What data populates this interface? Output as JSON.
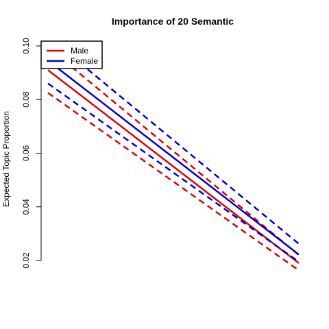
{
  "chart_data": {
    "type": "line",
    "title": "Importance of 20 Semantic",
    "xlabel": "",
    "ylabel": "Expected Topic Proportion",
    "x": [
      0,
      1
    ],
    "xlim": [
      0,
      1
    ],
    "ylim": [
      0.02,
      0.1
    ],
    "y_ticks": [
      0.02,
      0.04,
      0.06,
      0.08,
      0.1
    ],
    "y_tick_labels": [
      "0.02",
      "0.04",
      "0.06",
      "0.08",
      "0.10"
    ],
    "legend": {
      "position": "top-left",
      "entries": [
        {
          "label": "Male",
          "color": "#dd0000"
        },
        {
          "label": "Female",
          "color": "#0000cc"
        }
      ]
    },
    "series": [
      {
        "name": "Male",
        "color": "#dd0000",
        "estimate": [
          0.091,
          0.019
        ],
        "ci_lower": [
          0.0825,
          0.0163
        ],
        "ci_upper": [
          0.0995,
          0.022
        ]
      },
      {
        "name": "Female",
        "color": "#0000cc",
        "estimate": [
          0.0945,
          0.0222
        ],
        "ci_lower": [
          0.086,
          0.0195
        ],
        "ci_upper": [
          0.1035,
          0.0262
        ]
      }
    ]
  }
}
